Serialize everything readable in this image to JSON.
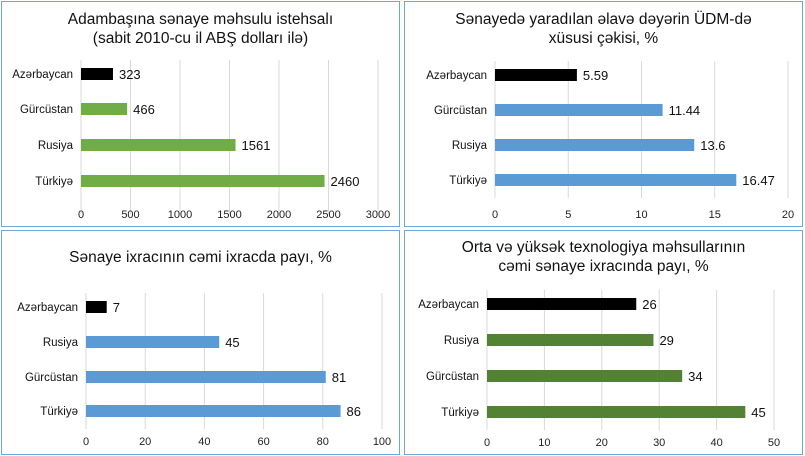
{
  "chart_data": [
    {
      "type": "bar",
      "orientation": "horizontal",
      "title": [
        "Adambaşına sənaye məhsulu istehsalı",
        "(sabit 2010-cu il ABŞ dolları ilə)"
      ],
      "categories": [
        "Azərbaycan",
        "Gürcüstan",
        "Rusiya",
        "Türkiyə"
      ],
      "values": [
        323,
        466,
        1561,
        2460
      ],
      "colors": [
        "#000000",
        "#70ad47",
        "#70ad47",
        "#70ad47"
      ],
      "xlim": [
        0,
        3000
      ],
      "ticks": [
        0,
        500,
        1000,
        1500,
        2000,
        2500,
        3000
      ],
      "tick_labels": [
        "0",
        "500",
        "1000",
        "1500",
        "2000",
        "2500",
        "3000"
      ],
      "data_labels": [
        "323",
        "466",
        "1561",
        "2460"
      ],
      "grid": true
    },
    {
      "type": "bar",
      "orientation": "horizontal",
      "title": [
        "Sənayedə yaradılan əlavə dəyərin ÜDM-də",
        "xüsusi çəkisi, %"
      ],
      "categories": [
        "Azərbaycan",
        "Gürcüstan",
        "Rusiya",
        "Türkiyə"
      ],
      "values": [
        5.59,
        11.44,
        13.6,
        16.47
      ],
      "colors": [
        "#000000",
        "#5b9bd5",
        "#5b9bd5",
        "#5b9bd5"
      ],
      "xlim": [
        0,
        20
      ],
      "ticks": [
        0,
        5,
        10,
        15,
        20
      ],
      "tick_labels": [
        "0",
        "5",
        "10",
        "15",
        "20"
      ],
      "data_labels": [
        "5.59",
        "11.44",
        "13.6",
        "16.47"
      ],
      "grid": true
    },
    {
      "type": "bar",
      "orientation": "horizontal",
      "title": [
        "Sənaye ixracının cəmi ixracda payı, %"
      ],
      "categories": [
        "Azərbaycan",
        "Rusiya",
        "Gürcüstan",
        "Türkiyə"
      ],
      "values": [
        7,
        45,
        81,
        86
      ],
      "colors": [
        "#000000",
        "#5b9bd5",
        "#5b9bd5",
        "#5b9bd5"
      ],
      "xlim": [
        0,
        100
      ],
      "ticks": [
        0,
        20,
        40,
        60,
        80,
        100
      ],
      "tick_labels": [
        "0",
        "20",
        "40",
        "60",
        "80",
        "100"
      ],
      "data_labels": [
        "7",
        "45",
        "81",
        "86"
      ],
      "grid": true
    },
    {
      "type": "bar",
      "orientation": "horizontal",
      "title": [
        "Orta və yüksək texnologiya məhsullarının",
        "cəmi sənaye ixracında payı, %"
      ],
      "categories": [
        "Azərbaycan",
        "Rusiya",
        "Gürcüstan",
        "Türkiyə"
      ],
      "values": [
        26,
        29,
        34,
        45
      ],
      "colors": [
        "#000000",
        "#548235",
        "#548235",
        "#548235"
      ],
      "xlim": [
        0,
        50
      ],
      "ticks": [
        0,
        10,
        20,
        30,
        40,
        50
      ],
      "tick_labels": [
        "0",
        "10",
        "20",
        "30",
        "40",
        "50"
      ],
      "data_labels": [
        "26",
        "29",
        "34",
        "45"
      ],
      "grid": true
    }
  ]
}
